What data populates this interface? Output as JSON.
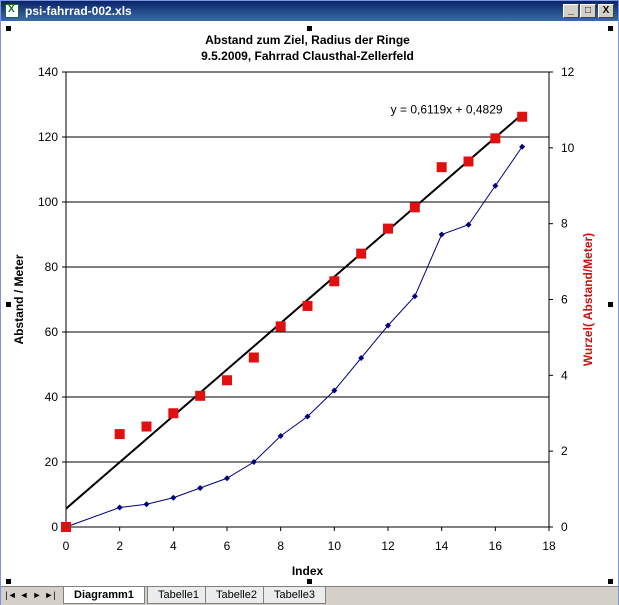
{
  "window": {
    "title": "psi-fahrrad-002.xls",
    "buttons": [
      "_",
      "□",
      "X"
    ]
  },
  "sheet_tabs": {
    "tabs": [
      "Diagramm1",
      "Tabelle1",
      "Tabelle2",
      "Tabelle3"
    ],
    "active": "Diagramm1",
    "nav": [
      "|◄",
      "◄",
      "►",
      "►|"
    ]
  },
  "chart_data": {
    "type": "line",
    "title": "Abstand zum Ziel, Radius der Ringe",
    "subtitle": "9.5.2009, Fahrrad Clausthal-Zellerfeld",
    "xlabel": "Index",
    "ylabel": "Abstand / Meter",
    "y2label": "Wurzel( Abstand/Meter)",
    "xlim": [
      0,
      18
    ],
    "ylim": [
      0,
      140
    ],
    "y2lim": [
      0,
      12
    ],
    "x_ticks": [
      "0",
      "2",
      "4",
      "6",
      "8",
      "10",
      "12",
      "14",
      "16",
      "18"
    ],
    "y_ticks": [
      "0",
      "20",
      "40",
      "60",
      "80",
      "100",
      "120",
      "140"
    ],
    "y2_ticks": [
      "0",
      "2",
      "4",
      "6",
      "8",
      "10",
      "12"
    ],
    "grid": "horizontal",
    "colors": {
      "series1": "#000080",
      "series2": "#e01010",
      "trend": "#000000",
      "y2label": "#cc1111"
    },
    "series": [
      {
        "axis": "left",
        "marker": "diamond",
        "x": [
          0,
          2,
          3,
          4,
          5,
          6,
          7,
          8,
          9,
          10,
          11,
          12,
          13,
          14,
          15,
          16,
          17
        ],
        "values": [
          0,
          6,
          7,
          9,
          12,
          15,
          20,
          28,
          34,
          42,
          52,
          62,
          71,
          90,
          93,
          105,
          117
        ]
      },
      {
        "axis": "right",
        "marker": "square",
        "x": [
          0,
          2,
          3,
          4,
          5,
          6,
          7,
          8,
          9,
          10,
          11,
          12,
          13,
          14,
          15,
          16,
          17
        ],
        "values": [
          0,
          2.45,
          2.65,
          3.0,
          3.46,
          3.87,
          4.47,
          5.29,
          5.83,
          6.48,
          7.21,
          7.87,
          8.43,
          9.49,
          9.64,
          10.25,
          10.82
        ]
      }
    ],
    "trendline": {
      "axis": "right",
      "slope": 0.6119,
      "intercept": 0.4829,
      "x_range": [
        0,
        17
      ],
      "label": "y = 0,6119x + 0,4829"
    }
  }
}
